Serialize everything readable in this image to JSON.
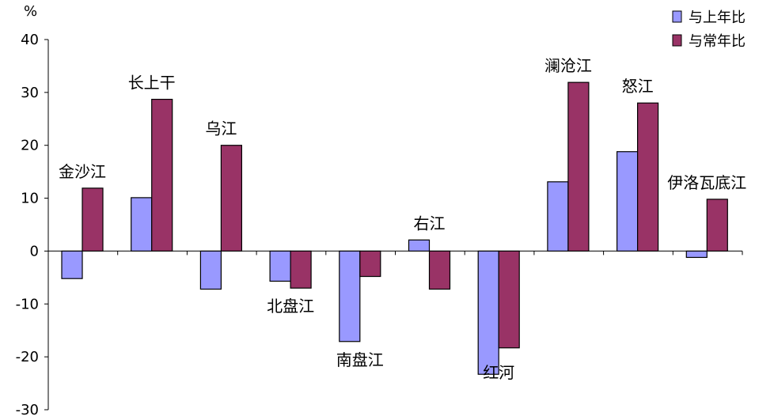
{
  "chart_data": {
    "type": "bar",
    "ylabel": "%",
    "ylim": [
      -30,
      40
    ],
    "yticks": [
      40,
      30,
      20,
      10,
      0,
      -10,
      -20,
      -30
    ],
    "ytick_labels": [
      "40",
      "30",
      "20",
      "10",
      "0",
      "-10",
      "-20",
      "-30"
    ],
    "categories": [
      "金沙江",
      "长上干",
      "乌江",
      "北盘江",
      "南盘江",
      "右江",
      "红河",
      "澜沧江",
      "怒江",
      "伊洛瓦底江"
    ],
    "series": [
      {
        "name": "与上年比",
        "color": "#9999ff",
        "values": [
          -5.2,
          10.1,
          -7.2,
          -5.7,
          -17.1,
          2.1,
          -23.3,
          13.1,
          18.8,
          -1.2
        ]
      },
      {
        "name": "与常年比",
        "color": "#993366",
        "values": [
          11.9,
          28.7,
          20.0,
          -7.0,
          -4.8,
          -7.2,
          -18.3,
          31.9,
          28.0,
          9.8
        ]
      }
    ],
    "legend": "top-right",
    "grid": false
  }
}
